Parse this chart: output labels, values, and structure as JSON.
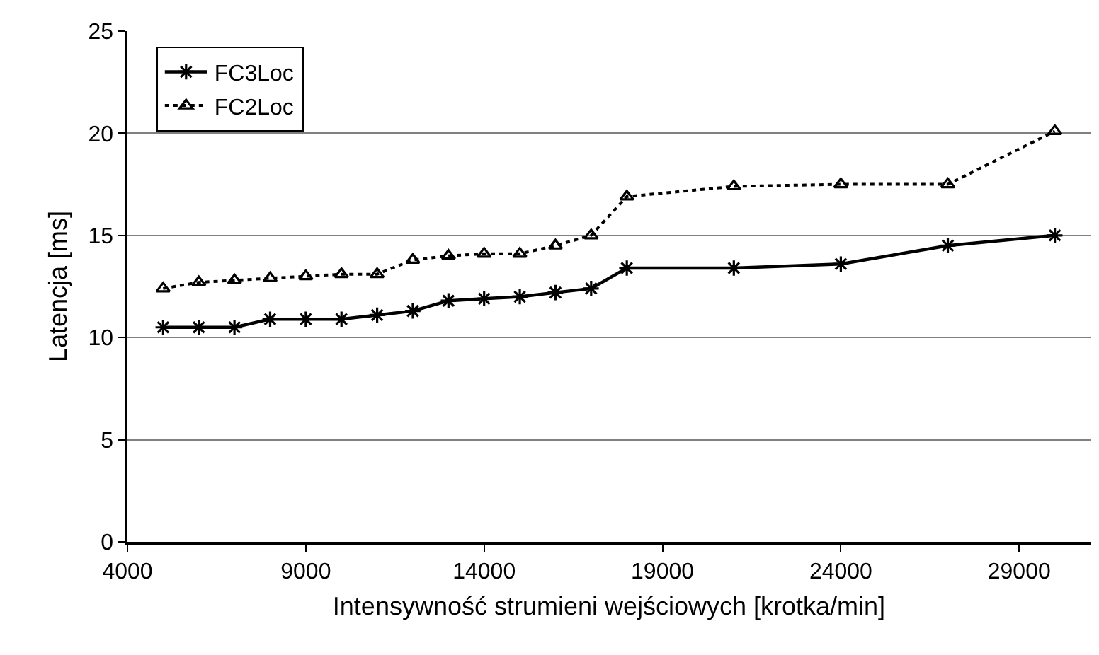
{
  "chart_data": {
    "type": "line",
    "xlabel": "Intensywność strumieni wejściowych [krotka/min]",
    "ylabel": "Latencja [ms]",
    "x": [
      5000,
      6000,
      7000,
      8000,
      9000,
      10000,
      11000,
      12000,
      13000,
      14000,
      15000,
      16000,
      17000,
      18000,
      21000,
      24000,
      27000,
      30000
    ],
    "series": [
      {
        "name": "FC3Loc",
        "color": "#000000",
        "marker": "cross",
        "line_style": "solid",
        "values": [
          10.5,
          10.5,
          10.5,
          10.9,
          10.9,
          10.9,
          11.1,
          11.3,
          11.8,
          11.9,
          12.0,
          12.2,
          12.4,
          13.4,
          13.4,
          13.6,
          14.5,
          15.0
        ]
      },
      {
        "name": "FC2Loc",
        "color": "#000000",
        "marker": "triangle",
        "line_style": "dotted",
        "values": [
          12.4,
          12.7,
          12.8,
          12.9,
          13.0,
          13.1,
          13.1,
          13.8,
          14.0,
          14.1,
          14.1,
          14.5,
          15.0,
          16.9,
          17.4,
          17.5,
          17.5,
          20.1
        ]
      }
    ],
    "xlim": [
      4000,
      31000
    ],
    "xticks": [
      4000,
      9000,
      14000,
      19000,
      24000,
      29000
    ],
    "ylim": [
      0,
      25
    ],
    "yticks": [
      0,
      5,
      10,
      15,
      20,
      25
    ],
    "grid": "y",
    "legend": "top left"
  }
}
